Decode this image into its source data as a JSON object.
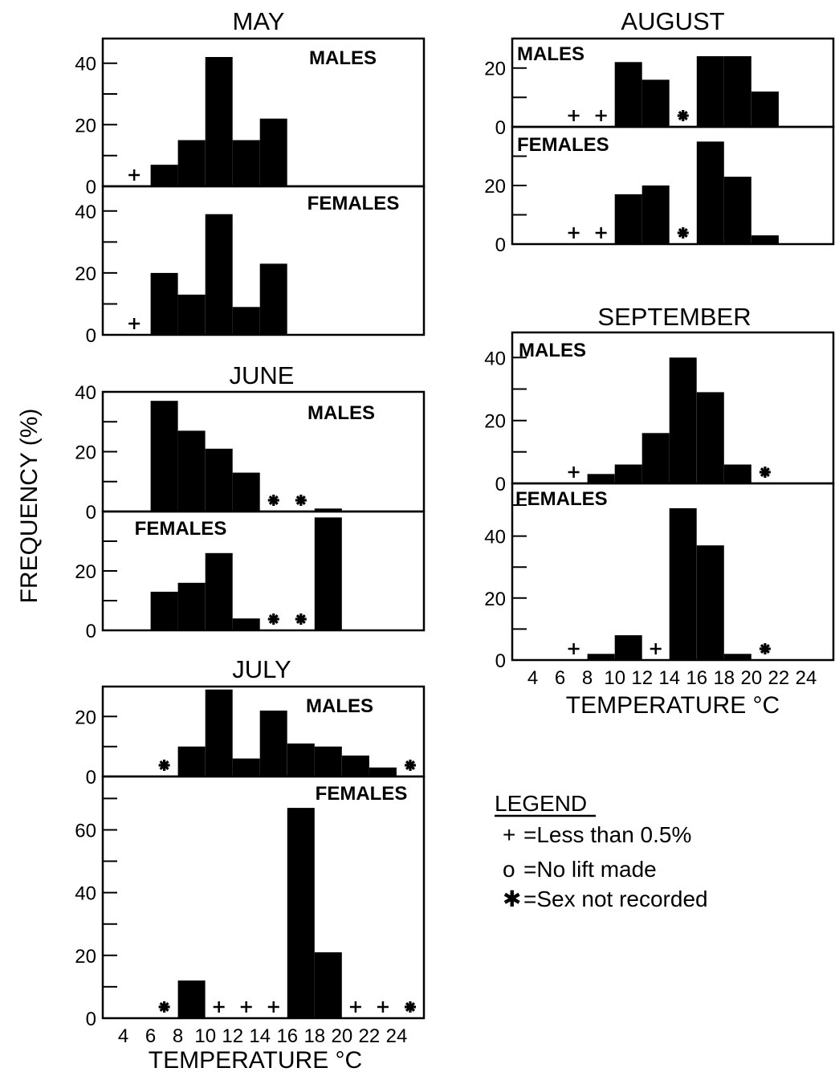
{
  "figure": {
    "ylabel": "FREQUENCY (%)",
    "xlabel": "TEMPERATURE °C",
    "x_ticks": [
      "4",
      "6",
      "8",
      "10",
      "12",
      "14",
      "16",
      "18",
      "20",
      "22",
      "24"
    ]
  },
  "legend": {
    "title": "LEGEND",
    "items": [
      {
        "symbol": "plus",
        "glyph": "+",
        "text": "=Less than 0.5%"
      },
      {
        "symbol": "circle",
        "glyph": "o",
        "text": "=No lift made"
      },
      {
        "symbol": "asterisk",
        "glyph": "✱",
        "text": "=Sex not recorded"
      }
    ]
  },
  "chart_data": [
    {
      "type": "bar",
      "month": "MAY",
      "series": "MALES",
      "bins": [
        [
          6,
          8,
          7
        ],
        [
          8,
          10,
          15
        ],
        [
          10,
          12,
          42
        ],
        [
          12,
          14,
          15
        ],
        [
          14,
          16,
          22
        ]
      ],
      "markers": [
        {
          "x": 4.8,
          "symbol": "plus"
        }
      ],
      "ylim": [
        0,
        48
      ],
      "yticks": [
        0,
        20,
        40
      ]
    },
    {
      "type": "bar",
      "month": "MAY",
      "series": "FEMALES",
      "bins": [
        [
          6,
          8,
          20
        ],
        [
          8,
          10,
          13
        ],
        [
          10,
          12,
          39
        ],
        [
          12,
          14,
          9
        ],
        [
          14,
          16,
          23
        ]
      ],
      "markers": [
        {
          "x": 4.8,
          "symbol": "plus"
        }
      ],
      "ylim": [
        0,
        48
      ],
      "yticks": [
        0,
        20,
        40
      ]
    },
    {
      "type": "bar",
      "month": "JUNE",
      "series": "MALES",
      "bins": [
        [
          6,
          8,
          37
        ],
        [
          8,
          10,
          27
        ],
        [
          10,
          12,
          21
        ],
        [
          12,
          14,
          13
        ],
        [
          18,
          20,
          1
        ]
      ],
      "markers": [
        {
          "x": 15,
          "symbol": "asterisk"
        },
        {
          "x": 17,
          "symbol": "asterisk"
        }
      ],
      "ylim": [
        0,
        40
      ],
      "yticks": [
        0,
        20,
        40
      ]
    },
    {
      "type": "bar",
      "month": "JUNE",
      "series": "FEMALES",
      "bins": [
        [
          6,
          8,
          13
        ],
        [
          8,
          10,
          16
        ],
        [
          10,
          12,
          26
        ],
        [
          12,
          14,
          4
        ],
        [
          18,
          20,
          38
        ]
      ],
      "markers": [
        {
          "x": 15,
          "symbol": "asterisk"
        },
        {
          "x": 17,
          "symbol": "asterisk"
        }
      ],
      "ylim": [
        0,
        40
      ],
      "yticks": [
        0,
        20
      ]
    },
    {
      "type": "bar",
      "month": "JULY",
      "series": "MALES",
      "bins": [
        [
          8,
          10,
          10
        ],
        [
          10,
          12,
          29
        ],
        [
          12,
          14,
          6
        ],
        [
          14,
          16,
          22
        ],
        [
          16,
          18,
          11
        ],
        [
          18,
          20,
          10
        ],
        [
          20,
          22,
          7
        ],
        [
          22,
          24,
          3
        ]
      ],
      "markers": [
        {
          "x": 7,
          "symbol": "asterisk"
        },
        {
          "x": 25,
          "symbol": "asterisk"
        }
      ],
      "ylim": [
        0,
        30
      ],
      "yticks": [
        0,
        20
      ]
    },
    {
      "type": "bar",
      "month": "JULY",
      "series": "FEMALES",
      "bins": [
        [
          8,
          10,
          12
        ],
        [
          16,
          18,
          67
        ],
        [
          18,
          20,
          21
        ]
      ],
      "markers": [
        {
          "x": 7,
          "symbol": "asterisk"
        },
        {
          "x": 11,
          "symbol": "plus"
        },
        {
          "x": 13,
          "symbol": "plus"
        },
        {
          "x": 15,
          "symbol": "plus"
        },
        {
          "x": 21,
          "symbol": "plus"
        },
        {
          "x": 23,
          "symbol": "plus"
        },
        {
          "x": 25,
          "symbol": "asterisk"
        }
      ],
      "ylim": [
        0,
        77
      ],
      "yticks": [
        0,
        20,
        40,
        60
      ]
    },
    {
      "type": "bar",
      "month": "AUGUST",
      "series": "MALES",
      "bins": [
        [
          10,
          12,
          22
        ],
        [
          12,
          14,
          16
        ],
        [
          16,
          18,
          24
        ],
        [
          18,
          20,
          24
        ],
        [
          20,
          22,
          12
        ]
      ],
      "markers": [
        {
          "x": 7,
          "symbol": "plus"
        },
        {
          "x": 9,
          "symbol": "plus"
        },
        {
          "x": 15,
          "symbol": "asterisk"
        },
        {
          "x": 17,
          "symbol": "circle"
        }
      ],
      "ylim": [
        0,
        30
      ],
      "yticks": [
        0,
        20
      ]
    },
    {
      "type": "bar",
      "month": "AUGUST",
      "series": "FEMALES",
      "bins": [
        [
          10,
          12,
          17
        ],
        [
          12,
          14,
          20
        ],
        [
          16,
          18,
          35
        ],
        [
          18,
          20,
          23
        ],
        [
          20,
          22,
          3
        ]
      ],
      "markers": [
        {
          "x": 7,
          "symbol": "plus"
        },
        {
          "x": 9,
          "symbol": "plus"
        },
        {
          "x": 15,
          "symbol": "asterisk"
        },
        {
          "x": 17,
          "symbol": "circle"
        }
      ],
      "ylim": [
        0,
        40
      ],
      "yticks": [
        0,
        20
      ]
    },
    {
      "type": "bar",
      "month": "SEPTEMBER",
      "series": "MALES",
      "bins": [
        [
          8,
          10,
          3
        ],
        [
          10,
          12,
          6
        ],
        [
          12,
          14,
          16
        ],
        [
          14,
          16,
          40
        ],
        [
          16,
          18,
          29
        ],
        [
          18,
          20,
          6
        ]
      ],
      "markers": [
        {
          "x": 7,
          "symbol": "plus"
        },
        {
          "x": 21,
          "symbol": "asterisk"
        }
      ],
      "ylim": [
        0,
        48
      ],
      "yticks": [
        0,
        20,
        40
      ]
    },
    {
      "type": "bar",
      "month": "SEPTEMBER",
      "series": "FEMALES",
      "bins": [
        [
          8,
          10,
          2
        ],
        [
          10,
          12,
          8
        ],
        [
          14,
          16,
          49
        ],
        [
          16,
          18,
          37
        ],
        [
          18,
          20,
          2
        ]
      ],
      "markers": [
        {
          "x": 7,
          "symbol": "plus"
        },
        {
          "x": 13,
          "symbol": "plus"
        },
        {
          "x": 21,
          "symbol": "asterisk"
        }
      ],
      "ylim": [
        0,
        57
      ],
      "yticks": [
        0,
        20,
        40
      ]
    }
  ]
}
